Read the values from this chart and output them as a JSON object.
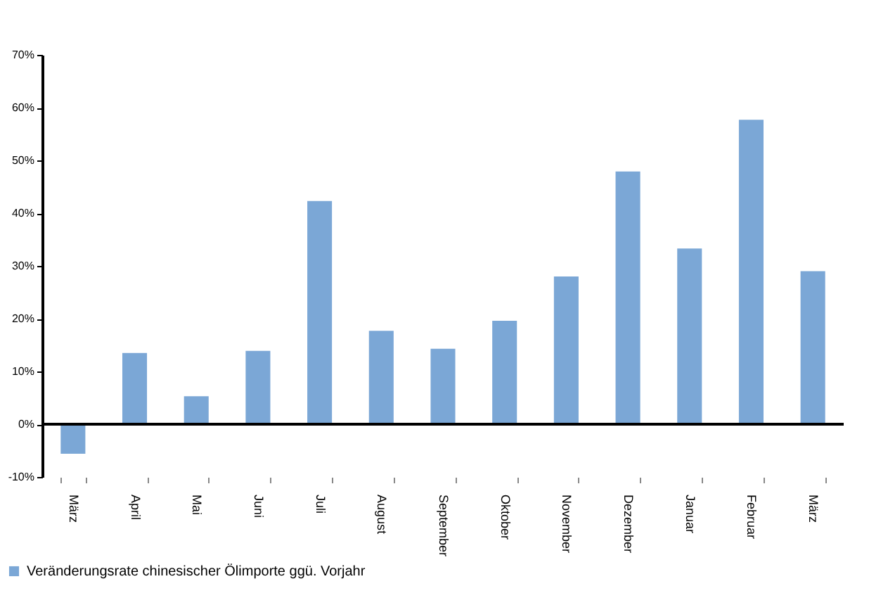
{
  "chart_data": {
    "type": "bar",
    "categories": [
      "März",
      "April",
      "Mai",
      "Juni",
      "Juli",
      "August",
      "September",
      "Oktober",
      "November",
      "Dezember",
      "Januar",
      "Februar",
      "März"
    ],
    "series": [
      {
        "name": "Veränderungsrate chinesischer Ölimporte ggü. Vorjahr",
        "color": "#7ba7d6",
        "values": [
          -5.6,
          13.5,
          5.3,
          13.9,
          42.3,
          17.7,
          14.3,
          19.6,
          28.0,
          47.9,
          33.3,
          57.7,
          29.0
        ]
      }
    ],
    "ylim": [
      -10,
      70
    ],
    "yticks": [
      {
        "value": -10,
        "label": "-10%"
      },
      {
        "value": 0,
        "label": "0%"
      },
      {
        "value": 10,
        "label": "10%"
      },
      {
        "value": 20,
        "label": "20%"
      },
      {
        "value": 30,
        "label": "30%"
      },
      {
        "value": 40,
        "label": "40%"
      },
      {
        "value": 50,
        "label": "50%"
      },
      {
        "value": 60,
        "label": "60%"
      },
      {
        "value": 70,
        "label": "70%"
      }
    ],
    "grid": false,
    "ref_lines": [
      {
        "axis": "y",
        "value": 0,
        "color": "#000000"
      }
    ],
    "legend": "bottom left"
  }
}
